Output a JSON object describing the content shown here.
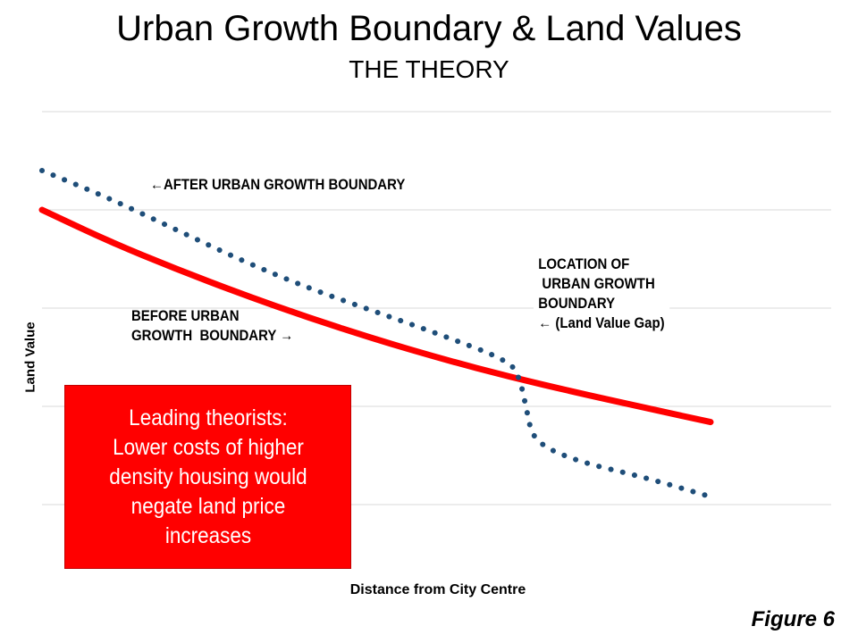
{
  "title": "Urban Growth Boundary & Land Values",
  "subtitle": "THE THEORY",
  "annotations": {
    "after": "←AFTER URBAN GROWTH BOUNDARY",
    "before": "BEFORE URBAN\nGROWTH  BOUNDARY →",
    "location": "LOCATION OF\n URBAN GROWTH\nBOUNDARY\n← (Land Value Gap)"
  },
  "callout": "Leading theorists:\nLower costs of higher\ndensity housing would\nnegate land price\n    increases",
  "figure_label": "Figure 6",
  "colors": {
    "before_line": "#ff0000",
    "after_line": "#1f4e79",
    "gridline": "#d9d9d9",
    "callout_bg": "#ff0000"
  },
  "chart_data": {
    "type": "line",
    "title": "Urban Growth Boundary & Land Values",
    "subtitle": "THE THEORY",
    "xlabel": "Distance from City Centre",
    "ylabel": "Land Value",
    "xlim": [
      0,
      100
    ],
    "ylim": [
      0,
      100
    ],
    "grid": true,
    "axis_ticks_labeled": false,
    "series": [
      {
        "name": "BEFORE URBAN GROWTH BOUNDARY",
        "style": "solid",
        "x": [
          0,
          10,
          20,
          30,
          40,
          50,
          60,
          70,
          80,
          90,
          100
        ],
        "y": [
          75,
          67,
          60,
          53.5,
          47.5,
          42,
          37,
          32.5,
          28.5,
          24.7,
          21
        ]
      },
      {
        "name": "AFTER URBAN GROWTH BOUNDARY",
        "style": "dotted",
        "x": [
          0,
          10,
          20,
          30,
          40,
          50,
          60,
          70,
          71.5,
          72.5,
          73.5,
          80,
          90,
          100
        ],
        "y": [
          85,
          78,
          70,
          62,
          55,
          49,
          43,
          36.5,
          32,
          24,
          16,
          11,
          7,
          2
        ]
      }
    ],
    "boundary_x": 72.5
  }
}
